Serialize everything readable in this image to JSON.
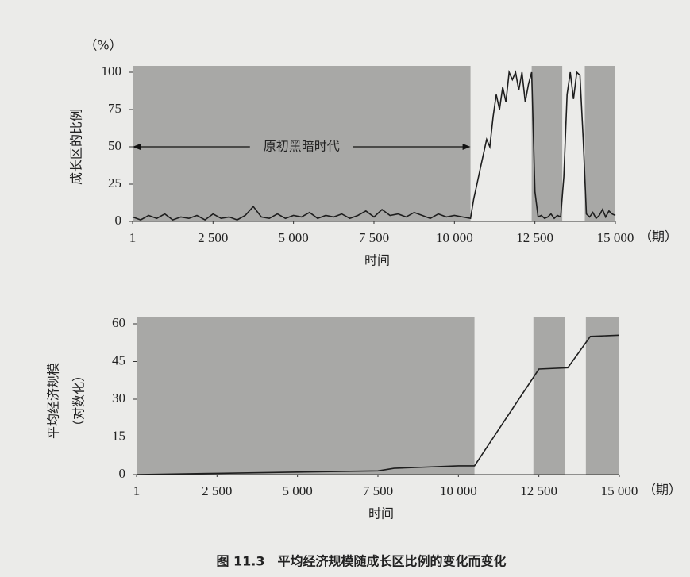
{
  "chart_data": [
    {
      "type": "line",
      "y_label": "成长区的比例",
      "y_unit": "（%）",
      "x_label": "时间",
      "x_unit": "（期）",
      "annotation": "原初黑暗时代",
      "xlim": [
        1,
        15000
      ],
      "ylim": [
        0,
        100
      ],
      "xticks": [
        1,
        {
          "value": 2500,
          "label": "2 500"
        },
        {
          "value": 5000,
          "label": "5 000"
        },
        {
          "value": 7500,
          "label": "7 500"
        },
        {
          "value": 10000,
          "label": "10 000"
        },
        {
          "value": 12500,
          "label": "12 500"
        },
        {
          "value": 15000,
          "label": "15 000"
        }
      ],
      "yticks": [
        0,
        25,
        50,
        75,
        100
      ],
      "shaded_ranges": [
        [
          1,
          10500
        ],
        [
          12400,
          13350
        ],
        [
          14050,
          15000
        ]
      ],
      "shade_color": "#a8a8a6",
      "color": "#1e1e1e",
      "x": [
        1,
        250,
        500,
        750,
        1000,
        1250,
        1500,
        1750,
        2000,
        2250,
        2500,
        2750,
        3000,
        3250,
        3500,
        3750,
        4000,
        4250,
        4500,
        4750,
        5000,
        5250,
        5500,
        5750,
        6000,
        6250,
        6500,
        6750,
        7000,
        7250,
        7500,
        7750,
        8000,
        8250,
        8500,
        8750,
        9000,
        9250,
        9500,
        9750,
        10000,
        10250,
        10500,
        10600,
        10700,
        10800,
        10900,
        11000,
        11100,
        11200,
        11300,
        11400,
        11500,
        11600,
        11700,
        11800,
        11900,
        12000,
        12100,
        12200,
        12300,
        12400,
        12500,
        12600,
        12700,
        12800,
        12900,
        13000,
        13100,
        13200,
        13300,
        13400,
        13500,
        13600,
        13700,
        13800,
        13900,
        14000,
        14100,
        14200,
        14300,
        14400,
        14500,
        14600,
        14700,
        14800,
        14900,
        15000
      ],
      "values": [
        3,
        1,
        4,
        2,
        5,
        1,
        3,
        2,
        4,
        1,
        5,
        2,
        3,
        1,
        4,
        10,
        3,
        2,
        5,
        2,
        4,
        3,
        6,
        2,
        4,
        3,
        5,
        2,
        4,
        7,
        3,
        8,
        4,
        5,
        3,
        6,
        4,
        2,
        5,
        3,
        4,
        3,
        2,
        15,
        25,
        35,
        45,
        55,
        50,
        70,
        85,
        75,
        90,
        80,
        100,
        95,
        100,
        88,
        100,
        80,
        92,
        100,
        20,
        3,
        4,
        2,
        3,
        5,
        2,
        4,
        3,
        30,
        85,
        100,
        82,
        100,
        98,
        55,
        5,
        3,
        6,
        2,
        4,
        8,
        3,
        7,
        5,
        4
      ]
    },
    {
      "type": "line",
      "y_label": "平均经济规模",
      "y_unit": "（对数化）",
      "x_label": "时间",
      "x_unit": "（期）",
      "xlim": [
        1,
        15000
      ],
      "ylim": [
        0,
        60
      ],
      "xticks": [
        1,
        {
          "value": 2500,
          "label": "2 500"
        },
        {
          "value": 5000,
          "label": "5 000"
        },
        {
          "value": 7500,
          "label": "7 500"
        },
        {
          "value": 10000,
          "label": "10 000"
        },
        {
          "value": 12500,
          "label": "12 500"
        },
        {
          "value": 15000,
          "label": "15 000"
        }
      ],
      "yticks": [
        0,
        15,
        30,
        45,
        60
      ],
      "shaded_ranges": [
        [
          1,
          10500
        ],
        [
          12330,
          13320
        ],
        [
          13960,
          15000
        ]
      ],
      "shade_color": "#a8a8a6",
      "color": "#1e1e1e",
      "x": [
        1,
        2500,
        5000,
        7500,
        8000,
        9000,
        10000,
        10500,
        12500,
        13400,
        14100,
        15000
      ],
      "values": [
        0,
        0.5,
        1,
        1.5,
        2.5,
        3,
        3.5,
        3.5,
        42,
        42.5,
        55,
        55.5
      ]
    }
  ],
  "caption": "图 11.3　平均经济规模随成长区比例的变化而变化"
}
